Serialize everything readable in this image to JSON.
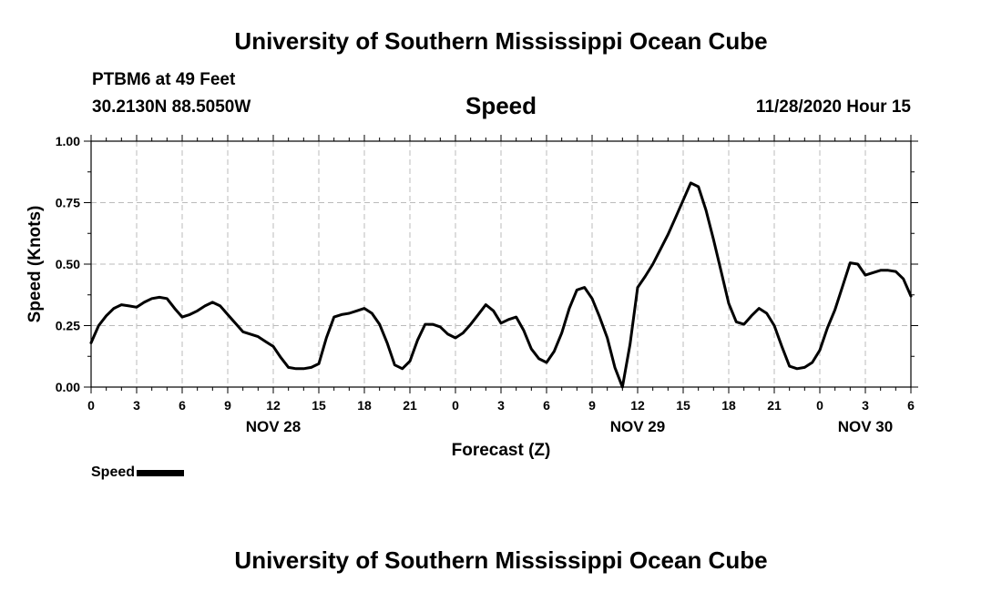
{
  "header": {
    "title": "University of Southern Mississippi Ocean Cube",
    "station": "PTBM6 at 49 Feet",
    "coords": "30.2130N 88.5050W",
    "variable": "Speed",
    "timestamp": "11/28/2020 Hour 15"
  },
  "footer": {
    "title": "University of Southern Mississippi Ocean Cube"
  },
  "legend": {
    "label": "Speed",
    "color": "#000000"
  },
  "chart_data": {
    "type": "line",
    "title": "Speed",
    "xlabel": "Forecast (Z)",
    "ylabel": "Speed (Knots)",
    "ylim": [
      0,
      1
    ],
    "yticks": [
      "0.00",
      "0.25",
      "0.50",
      "0.75",
      "1.00"
    ],
    "xlim_hours": [
      0,
      54
    ],
    "xtick_labels": [
      "0",
      "3",
      "6",
      "9",
      "12",
      "15",
      "18",
      "21",
      "0",
      "3",
      "6",
      "9",
      "12",
      "15",
      "18",
      "21",
      "0",
      "3",
      "6"
    ],
    "date_labels": [
      {
        "label": "NOV 28",
        "at_tick": 4
      },
      {
        "label": "NOV 29",
        "at_tick": 12
      },
      {
        "label": "NOV 30",
        "at_tick": 17
      }
    ],
    "grid": true,
    "line_color": "#000000",
    "series": [
      {
        "name": "Speed",
        "x_hours": [
          0,
          0.5,
          1,
          1.5,
          2,
          2.5,
          3,
          3.5,
          4,
          4.5,
          5,
          5.5,
          6,
          6.5,
          7,
          7.5,
          8,
          8.5,
          9,
          9.5,
          10,
          10.5,
          11,
          11.5,
          12,
          12.5,
          13,
          13.5,
          14,
          14.5,
          15,
          15.5,
          16,
          16.5,
          17,
          17.5,
          18,
          18.5,
          19,
          19.5,
          20,
          20.5,
          21,
          21.5,
          22,
          22.5,
          23,
          23.5,
          24,
          24.5,
          25,
          25.5,
          26,
          26.5,
          27,
          27.5,
          28,
          28.5,
          29,
          29.5,
          30,
          30.5,
          31,
          31.5,
          32,
          32.5,
          33,
          33.5,
          34,
          34.5,
          35,
          35.5,
          36,
          36.5,
          37,
          37.5,
          38,
          38.5,
          39,
          39.5,
          40,
          40.5,
          41,
          41.5,
          42,
          42.5,
          43,
          43.5,
          44,
          44.5,
          45,
          45.5,
          46,
          46.5,
          47,
          47.5,
          48,
          48.5,
          49,
          49.5,
          50,
          50.5,
          51,
          51.5,
          52,
          52.5,
          53,
          53.5,
          54
        ],
        "values": [
          0.18,
          0.25,
          0.29,
          0.32,
          0.335,
          0.33,
          0.325,
          0.345,
          0.36,
          0.365,
          0.36,
          0.32,
          0.285,
          0.295,
          0.31,
          0.33,
          0.345,
          0.33,
          0.295,
          0.26,
          0.225,
          0.215,
          0.205,
          0.185,
          0.165,
          0.12,
          0.08,
          0.075,
          0.075,
          0.08,
          0.095,
          0.2,
          0.285,
          0.295,
          0.3,
          0.31,
          0.32,
          0.3,
          0.255,
          0.18,
          0.09,
          0.075,
          0.105,
          0.19,
          0.255,
          0.255,
          0.245,
          0.215,
          0.2,
          0.22,
          0.255,
          0.295,
          0.335,
          0.31,
          0.26,
          0.275,
          0.285,
          0.23,
          0.155,
          0.115,
          0.1,
          0.145,
          0.22,
          0.32,
          0.395,
          0.405,
          0.36,
          0.285,
          0.2,
          0.08,
          0.0,
          0.175,
          0.405,
          0.45,
          0.5,
          0.56,
          0.62,
          0.69,
          0.76,
          0.83,
          0.815,
          0.72,
          0.6,
          0.47,
          0.34,
          0.265,
          0.255,
          0.29,
          0.32,
          0.3,
          0.25,
          0.165,
          0.085,
          0.075,
          0.08,
          0.1,
          0.15,
          0.24,
          0.315,
          0.41,
          0.505,
          0.5,
          0.455,
          0.465,
          0.475,
          0.475,
          0.47,
          0.44,
          0.37
        ]
      }
    ]
  }
}
